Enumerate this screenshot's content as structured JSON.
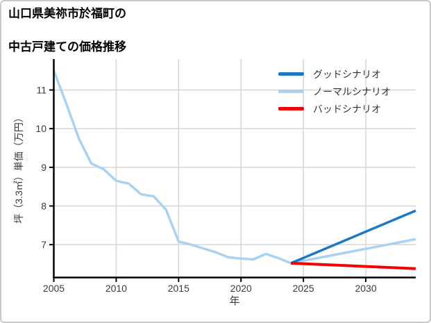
{
  "window": {
    "title_line1": "山口県美祢市於福町の",
    "title_line2": "中古戸建ての価格推移"
  },
  "chart_data": {
    "type": "line",
    "title": "山口県美祢市於福町の中古戸建ての価格推移",
    "xlabel": "年",
    "ylabel": "坪（3.3㎡）単価（万円）",
    "xlim": [
      2005,
      2034
    ],
    "ylim": [
      6.15,
      11.8
    ],
    "x_ticks": [
      2005,
      2010,
      2015,
      2020,
      2025,
      2030
    ],
    "y_ticks": [
      7,
      8,
      9,
      10,
      11
    ],
    "grid": true,
    "legend_position": "upper right",
    "legend": [
      {
        "label": "グッドシナリオ",
        "color": "#1a78c4"
      },
      {
        "label": "ノーマルシナリオ",
        "color": "#a9d2f0"
      },
      {
        "label": "バッドシナリオ",
        "color": "#f40000"
      }
    ],
    "series": [
      {
        "name": "history",
        "color": "#a9d2f0",
        "width": 3.5,
        "x": [
          2005,
          2006,
          2007,
          2008,
          2009,
          2010,
          2011,
          2012,
          2013,
          2014,
          2015,
          2016,
          2017,
          2018,
          2019,
          2020,
          2021,
          2022,
          2023,
          2024
        ],
        "y": [
          11.5,
          10.65,
          9.75,
          9.1,
          8.95,
          8.65,
          8.58,
          8.3,
          8.25,
          7.9,
          7.08,
          7.0,
          6.9,
          6.8,
          6.67,
          6.64,
          6.62,
          6.76,
          6.65,
          6.52
        ]
      },
      {
        "name": "normal-scenario",
        "color": "#a9d2f0",
        "width": 3.5,
        "x": [
          2024,
          2034
        ],
        "y": [
          6.52,
          7.14
        ]
      },
      {
        "name": "good-scenario",
        "color": "#1a78c4",
        "width": 3.5,
        "x": [
          2024,
          2034
        ],
        "y": [
          6.52,
          7.88
        ]
      },
      {
        "name": "bad-scenario",
        "color": "#f40000",
        "width": 4,
        "x": [
          2024,
          2034
        ],
        "y": [
          6.52,
          6.38
        ]
      }
    ],
    "colors": {
      "grid": "#d6d6d6",
      "axis": "#000000",
      "tick_label": "#3a3a3a",
      "background": "#ffffff",
      "border": "#c9c9c9"
    }
  }
}
